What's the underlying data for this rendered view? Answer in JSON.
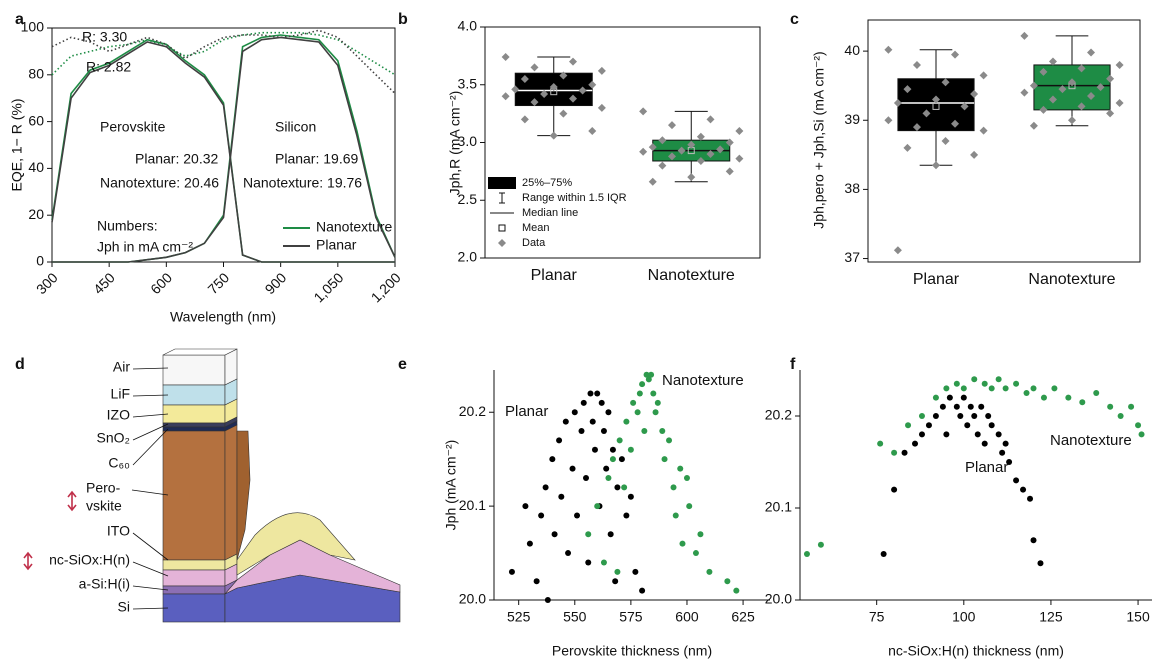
{
  "chart_data": [
    {
      "type": "line",
      "panel": "a",
      "xlabel": "Wavelength (nm)",
      "ylabel": "EQE, 1− R (%)",
      "x": [
        300,
        350,
        400,
        450,
        500,
        550,
        600,
        650,
        700,
        750,
        800,
        850,
        900,
        950,
        1000,
        1050,
        1100,
        1150,
        1200
      ],
      "xlim": [
        300,
        1200
      ],
      "ylim": [
        0,
        100
      ],
      "xticks": [
        300,
        450,
        600,
        750,
        900,
        {
          "value": 1050,
          "label": "1,050"
        },
        {
          "value": 1200,
          "label": "1,200"
        }
      ],
      "yticks": [
        0,
        20,
        40,
        60,
        80,
        100
      ],
      "series": [
        {
          "name": "Nanotexture",
          "color": "#1e8c45",
          "perovskite": [
            18,
            72,
            82,
            85,
            90,
            95,
            93,
            86,
            80,
            68,
            3,
            0,
            0,
            0,
            0,
            0,
            0,
            0,
            0
          ],
          "silicon": [
            0,
            0,
            0,
            0,
            0,
            1,
            2,
            4,
            8,
            20,
            92,
            96,
            97,
            96,
            95,
            86,
            56,
            20,
            2
          ],
          "one_minus_r": [
            80,
            88,
            90,
            92,
            93,
            95,
            92,
            88,
            90,
            95,
            97,
            98,
            98,
            98,
            97,
            95,
            90,
            85,
            80
          ]
        },
        {
          "name": "Planar",
          "color": "#404040",
          "perovskite": [
            17,
            70,
            81,
            84,
            89,
            94,
            92,
            85,
            79,
            67,
            3,
            0,
            0,
            0,
            0,
            0,
            0,
            0,
            0
          ],
          "silicon": [
            0,
            0,
            0,
            0,
            0,
            1,
            2,
            4,
            8,
            19,
            90,
            95,
            96,
            95,
            94,
            84,
            54,
            19,
            2
          ],
          "one_minus_r": [
            92,
            96,
            94,
            90,
            93,
            96,
            93,
            87,
            92,
            96,
            97,
            97,
            96,
            97,
            99,
            96,
            88,
            80,
            72
          ]
        }
      ],
      "annotations": [
        "R: 3.30",
        "R: 2.82",
        "Perovskite",
        "Silicon",
        "Planar: 20.32",
        "Nanotexture: 20.46",
        "Planar: 19.69",
        "Nanotexture: 19.76",
        "Numbers:",
        "Jph in mA cm⁻²"
      ]
    },
    {
      "type": "box",
      "panel": "b",
      "ylabel": "Jph,R (mA cm⁻²)",
      "categories": [
        "Planar",
        "Nanotexture"
      ],
      "colors": [
        "#000000",
        "#1e8c45"
      ],
      "ylim": [
        2.0,
        4.0
      ],
      "yticks": [
        {
          "value": 2.0,
          "label": "2.0"
        },
        2.5,
        {
          "value": 3.0,
          "label": "3.0"
        },
        3.5,
        {
          "value": 4.0,
          "label": "4.0"
        }
      ],
      "legend": [
        "25%–75%",
        "Range within 1.5 IQR",
        "Median line",
        "Mean",
        "Data"
      ],
      "boxes": [
        {
          "low": 3.06,
          "q1": 3.32,
          "median": 3.45,
          "q3": 3.6,
          "high": 3.74,
          "mean": 3.44,
          "points": [
            3.74,
            3.7,
            3.65,
            3.62,
            3.58,
            3.55,
            3.5,
            3.48,
            3.46,
            3.45,
            3.42,
            3.4,
            3.38,
            3.35,
            3.3,
            3.25,
            3.2,
            3.1,
            3.06
          ]
        },
        {
          "low": 2.66,
          "q1": 2.84,
          "median": 2.93,
          "q3": 3.02,
          "high": 3.27,
          "mean": 2.93,
          "points": [
            3.27,
            3.2,
            3.15,
            3.1,
            3.05,
            3.02,
            3.0,
            2.98,
            2.96,
            2.94,
            2.93,
            2.92,
            2.9,
            2.88,
            2.86,
            2.84,
            2.8,
            2.75,
            2.7,
            2.66
          ]
        }
      ]
    },
    {
      "type": "box",
      "panel": "c",
      "ylabel": "Jph,pero + Jph,Si (mA cm⁻²)",
      "categories": [
        "Planar",
        "Nanotexture"
      ],
      "colors": [
        "#000000",
        "#1e8c45"
      ],
      "ylim": [
        36.95,
        40.45
      ],
      "yticks": [
        37,
        38,
        39,
        40
      ],
      "boxes": [
        {
          "low": 38.35,
          "q1": 38.85,
          "median": 39.25,
          "q3": 39.6,
          "high": 40.02,
          "mean": 39.2,
          "points": [
            40.02,
            39.95,
            39.8,
            39.65,
            39.55,
            39.45,
            39.38,
            39.3,
            39.25,
            39.2,
            39.1,
            39.0,
            38.95,
            38.9,
            38.85,
            38.7,
            38.6,
            38.5,
            38.35,
            37.12
          ]
        },
        {
          "low": 38.92,
          "q1": 39.15,
          "median": 39.5,
          "q3": 39.8,
          "high": 40.22,
          "mean": 39.5,
          "points": [
            40.22,
            39.98,
            39.85,
            39.8,
            39.75,
            39.7,
            39.6,
            39.55,
            39.5,
            39.48,
            39.45,
            39.4,
            39.35,
            39.3,
            39.25,
            39.2,
            39.15,
            39.1,
            39.0,
            38.92
          ]
        }
      ]
    },
    {
      "type": "scatter",
      "panel": "e",
      "xlabel": "Perovskite thickness (nm)",
      "ylabel": "Jph (mA cm⁻²)",
      "xlim": [
        514,
        637
      ],
      "ylim": [
        20.0,
        20.245
      ],
      "xticks": [
        525,
        550,
        575,
        600,
        625
      ],
      "yticks": [
        {
          "value": 20.0,
          "label": "20.0"
        },
        20.1,
        20.2
      ],
      "series": [
        {
          "name": "Planar",
          "color": "#000000",
          "x": [
            522,
            528,
            530,
            533,
            535,
            537,
            538,
            540,
            541,
            543,
            544,
            546,
            547,
            549,
            550,
            551,
            553,
            554,
            555,
            556,
            557,
            558,
            559,
            560,
            561,
            562,
            563,
            564,
            565,
            566,
            567,
            568,
            569,
            571,
            573,
            575,
            577,
            580
          ],
          "values": [
            20.03,
            20.1,
            20.06,
            20.02,
            20.09,
            20.12,
            20.0,
            20.15,
            20.07,
            20.17,
            20.11,
            20.19,
            20.05,
            20.14,
            20.2,
            20.09,
            20.18,
            20.21,
            20.13,
            20.04,
            20.22,
            20.19,
            20.16,
            20.22,
            20.1,
            20.21,
            20.18,
            20.14,
            20.2,
            20.07,
            20.16,
            20.02,
            20.12,
            20.15,
            20.09,
            20.11,
            20.03,
            20.01
          ]
        },
        {
          "name": "Nanotexture",
          "color": "#2e9a4c",
          "x": [
            556,
            560,
            563,
            565,
            567,
            569,
            570,
            572,
            573,
            575,
            576,
            578,
            579,
            580,
            581,
            582,
            583,
            584,
            585,
            586,
            587,
            589,
            590,
            592,
            594,
            595,
            597,
            598,
            600,
            601,
            604,
            606,
            610,
            618,
            622
          ],
          "values": [
            20.07,
            20.1,
            20.04,
            20.13,
            20.15,
            20.03,
            20.17,
            20.12,
            20.19,
            20.16,
            20.21,
            20.2,
            20.22,
            20.23,
            20.18,
            20.24,
            20.235,
            20.24,
            20.22,
            20.2,
            20.21,
            20.18,
            20.15,
            20.17,
            20.12,
            20.09,
            20.14,
            20.06,
            20.13,
            20.1,
            20.05,
            20.07,
            20.03,
            20.02,
            20.01
          ]
        }
      ]
    },
    {
      "type": "scatter",
      "panel": "f",
      "xlabel": "nc-SiOx:H(n) thickness (nm)",
      "xlim": [
        53,
        154
      ],
      "ylim": [
        20.0,
        20.25
      ],
      "xticks": [
        75,
        100,
        125,
        150
      ],
      "yticks": [
        {
          "value": 20.0,
          "label": "20.0"
        },
        20.1,
        20.2
      ],
      "series": [
        {
          "name": "Nanotexture",
          "color": "#2e9a4c",
          "x": [
            55,
            59,
            76,
            80,
            84,
            88,
            92,
            95,
            98,
            100,
            103,
            106,
            108,
            110,
            112,
            115,
            118,
            120,
            123,
            126,
            130,
            134,
            138,
            142,
            145,
            148,
            150,
            151
          ],
          "values": [
            20.05,
            20.06,
            20.17,
            20.16,
            20.19,
            20.2,
            20.22,
            20.23,
            20.235,
            20.23,
            20.24,
            20.235,
            20.23,
            20.24,
            20.23,
            20.235,
            20.225,
            20.23,
            20.22,
            20.23,
            20.22,
            20.215,
            20.225,
            20.21,
            20.2,
            20.21,
            20.19,
            20.18
          ]
        },
        {
          "name": "Planar",
          "color": "#000000",
          "x": [
            77,
            80,
            83,
            86,
            88,
            90,
            92,
            94,
            95,
            96,
            98,
            99,
            100,
            101,
            102,
            103,
            104,
            105,
            106,
            107,
            108,
            110,
            111,
            112,
            113,
            115,
            117,
            119,
            120,
            122
          ],
          "values": [
            20.05,
            20.12,
            20.16,
            20.17,
            20.18,
            20.19,
            20.2,
            20.21,
            20.18,
            20.22,
            20.21,
            20.2,
            20.22,
            20.19,
            20.21,
            20.2,
            20.18,
            20.21,
            20.17,
            20.2,
            20.19,
            20.18,
            20.16,
            20.17,
            20.15,
            20.13,
            20.12,
            20.11,
            20.065,
            20.04
          ]
        }
      ]
    }
  ],
  "diagram": {
    "panel": "d",
    "layers": [
      {
        "lines": [
          "Air"
        ]
      },
      {
        "lines": [
          "LiF"
        ]
      },
      {
        "lines": [
          "IZO"
        ]
      },
      {
        "lines": [
          "SnO₂"
        ]
      },
      {
        "lines": [
          "C₆₀"
        ]
      },
      {
        "lines": [
          "Pero-",
          "vskite"
        ]
      },
      {
        "lines": [
          "ITO"
        ]
      },
      {
        "lines": [
          "nc-SiOx:H(n)"
        ]
      },
      {
        "lines": [
          "a-Si:H(i)"
        ]
      },
      {
        "lines": [
          "Si"
        ]
      }
    ]
  }
}
